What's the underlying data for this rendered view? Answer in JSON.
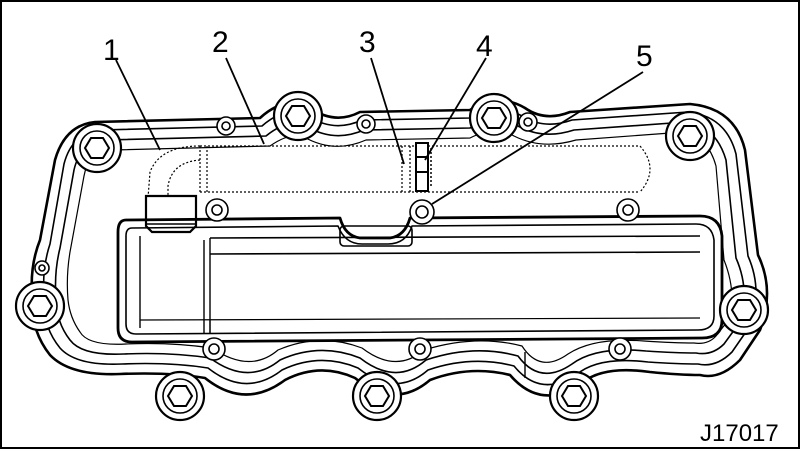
{
  "figure": {
    "id": "J17017",
    "description_subject": "engine valve cover assembly",
    "colors": {
      "line": "#000000",
      "background": "#ffffff"
    }
  },
  "callouts": [
    {
      "number": "1"
    },
    {
      "number": "2"
    },
    {
      "number": "3"
    },
    {
      "number": "4"
    },
    {
      "number": "5"
    }
  ]
}
